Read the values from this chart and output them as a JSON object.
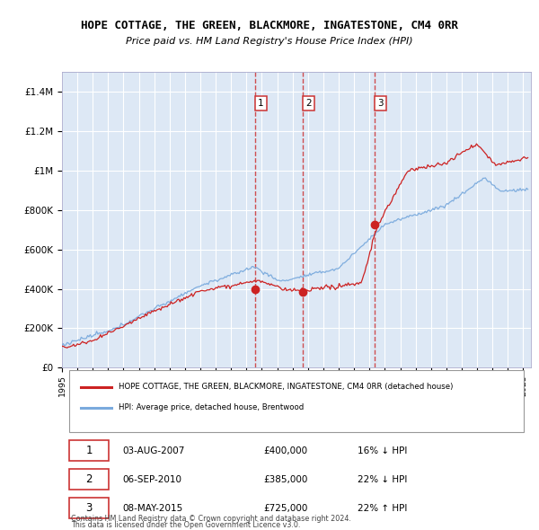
{
  "title": "HOPE COTTAGE, THE GREEN, BLACKMORE, INGATESTONE, CM4 0RR",
  "subtitle": "Price paid vs. HM Land Registry's House Price Index (HPI)",
  "legend_line1": "HOPE COTTAGE, THE GREEN, BLACKMORE, INGATESTONE, CM4 0RR (detached house)",
  "legend_line2": "HPI: Average price, detached house, Brentwood",
  "footer1": "Contains HM Land Registry data © Crown copyright and database right 2024.",
  "footer2": "This data is licensed under the Open Government Licence v3.0.",
  "table": [
    {
      "num": "1",
      "date": "03-AUG-2007",
      "price": "£400,000",
      "hpi": "16% ↓ HPI"
    },
    {
      "num": "2",
      "date": "06-SEP-2010",
      "price": "£385,000",
      "hpi": "22% ↓ HPI"
    },
    {
      "num": "3",
      "date": "08-MAY-2015",
      "price": "£725,000",
      "hpi": "22% ↑ HPI"
    }
  ],
  "sale_dates_num": [
    2007.586,
    2010.678,
    2015.353
  ],
  "sale_prices": [
    400000,
    385000,
    725000
  ],
  "vline_dates": [
    2007.586,
    2010.678,
    2015.353
  ],
  "ylim": [
    0,
    1500000
  ],
  "xlim_start": 1995.0,
  "xlim_end": 2025.5,
  "hpi_color": "#7aaadd",
  "price_color": "#cc2222",
  "dot_color": "#cc2222",
  "plot_bg": "#dde8f5",
  "grid_color": "#ffffff",
  "vline_color": "#cc3333",
  "label_box_color": "#cc3333",
  "yticks": [
    0,
    200000,
    400000,
    600000,
    800000,
    1000000,
    1200000,
    1400000
  ],
  "ytick_labels": [
    "£0",
    "£200K",
    "£400K",
    "£600K",
    "£800K",
    "£1M",
    "£1.2M",
    "£1.4M"
  ]
}
